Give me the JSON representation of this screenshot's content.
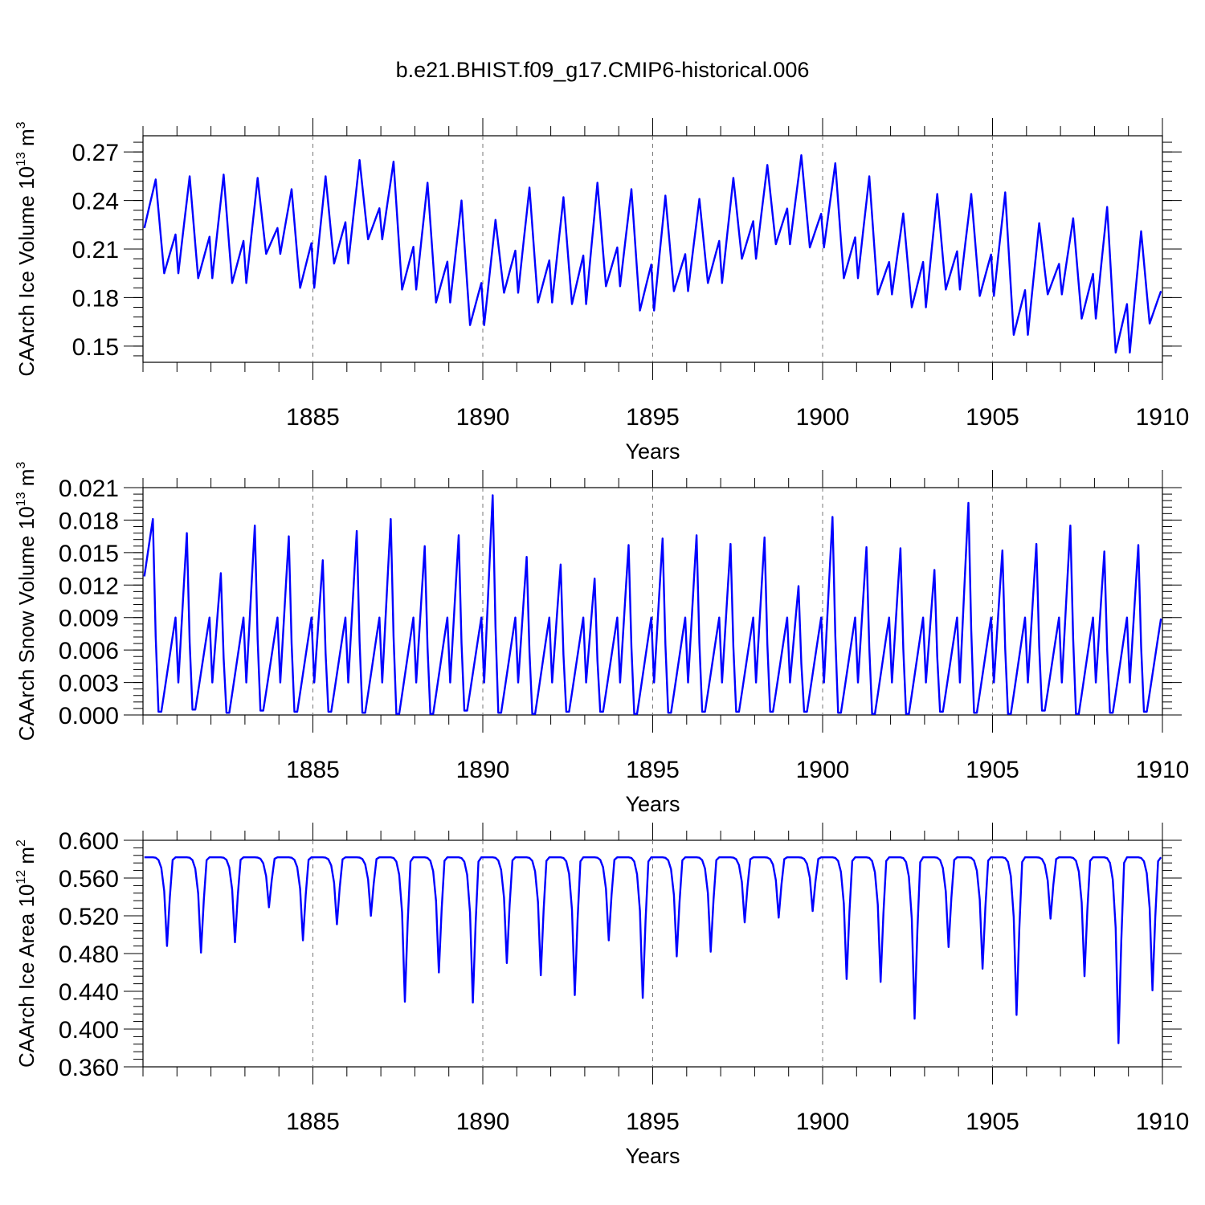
{
  "chart_data": [
    {
      "type": "line",
      "title": "b.e21.BHIST.f09_g17.CMIP6-historical.006",
      "xlabel": "Years",
      "ylabel": "CAArch Ice Volume 10",
      "ylabel_exp": "13",
      "ylabel_unit": " m",
      "ylabel_unit_exp": "3",
      "xlim": [
        1880,
        1910
      ],
      "ylim": [
        0.14,
        0.28
      ],
      "xticks": [
        1885,
        1890,
        1895,
        1900,
        1905,
        1910
      ],
      "xtick_labels": [
        "1885",
        "1890",
        "1895",
        "1900",
        "1905",
        "1910"
      ],
      "yticks": [
        0.15,
        0.18,
        0.21,
        0.24,
        0.27
      ],
      "ytick_labels": [
        "0.15",
        "0.18",
        "0.21",
        "0.24",
        "0.27"
      ],
      "grid": "vertical dashed at major x ticks",
      "series": [
        {
          "name": "CAArch Ice Volume",
          "color": "#0000ff",
          "peak_values": [
            0.253,
            0.255,
            0.256,
            0.254,
            0.247,
            0.255,
            0.265,
            0.264,
            0.251,
            0.24,
            0.228,
            0.248,
            0.242,
            0.251,
            0.247,
            0.243,
            0.241,
            0.254,
            0.262,
            0.268,
            0.263,
            0.255,
            0.232,
            0.244,
            0.244,
            0.245,
            0.226,
            0.229,
            0.236,
            0.221
          ],
          "trough_values": [
            0.195,
            0.192,
            0.189,
            0.207,
            0.186,
            0.201,
            0.216,
            0.185,
            0.177,
            0.163,
            0.183,
            0.177,
            0.176,
            0.187,
            0.172,
            0.184,
            0.189,
            0.204,
            0.213,
            0.211,
            0.192,
            0.182,
            0.174,
            0.185,
            0.181,
            0.157,
            0.182,
            0.167,
            0.146,
            0.164
          ],
          "start_value": 0.223,
          "end_value": 0.184
        }
      ]
    },
    {
      "type": "line",
      "xlabel": "Years",
      "ylabel": "CAArch Snow Volume 10",
      "ylabel_exp": "13",
      "ylabel_unit": " m",
      "ylabel_unit_exp": "3",
      "xlim": [
        1880,
        1910
      ],
      "ylim": [
        0.0,
        0.021
      ],
      "xticks": [
        1885,
        1890,
        1895,
        1900,
        1905,
        1910
      ],
      "xtick_labels": [
        "1885",
        "1890",
        "1895",
        "1900",
        "1905",
        "1910"
      ],
      "yticks": [
        0.0,
        0.003,
        0.006,
        0.009,
        0.012,
        0.015,
        0.018,
        0.021
      ],
      "ytick_labels": [
        "0.000",
        "0.003",
        "0.006",
        "0.009",
        "0.012",
        "0.015",
        "0.018",
        "0.021"
      ],
      "grid": "vertical dashed at major x ticks",
      "series": [
        {
          "name": "CAArch Snow Volume",
          "color": "#0000ff",
          "peak_values": [
            0.0181,
            0.0168,
            0.0131,
            0.0175,
            0.0165,
            0.0143,
            0.017,
            0.0181,
            0.0156,
            0.0166,
            0.0203,
            0.0146,
            0.0139,
            0.0126,
            0.0157,
            0.0163,
            0.0166,
            0.0158,
            0.0164,
            0.0119,
            0.0183,
            0.0155,
            0.0154,
            0.0134,
            0.0196,
            0.0152,
            0.0158,
            0.0175,
            0.0151,
            0.0157
          ],
          "trough_values": [
            0.0003,
            0.0005,
            0.0002,
            0.0004,
            0.0003,
            0.0003,
            0.0002,
            0.0001,
            0.0001,
            0.0004,
            0.0002,
            0.0001,
            0.0003,
            0.0003,
            0.0001,
            0.0002,
            0.0003,
            0.0003,
            0.0003,
            0.0003,
            0.0002,
            0.0001,
            0.0001,
            0.0003,
            0.0002,
            0.0001,
            0.0004,
            0.0001,
            0.0002,
            0.0003
          ],
          "start_value": 0.0128,
          "end_value": 0.0089
        }
      ]
    },
    {
      "type": "line",
      "xlabel": "Years",
      "ylabel": "CAArch Ice Area 10",
      "ylabel_exp": "12",
      "ylabel_unit": " m",
      "ylabel_unit_exp": "2",
      "xlim": [
        1880,
        1910
      ],
      "ylim": [
        0.36,
        0.6
      ],
      "xticks": [
        1885,
        1890,
        1895,
        1900,
        1905,
        1910
      ],
      "xtick_labels": [
        "1885",
        "1890",
        "1895",
        "1900",
        "1905",
        "1910"
      ],
      "yticks": [
        0.36,
        0.4,
        0.44,
        0.48,
        0.52,
        0.56,
        0.6
      ],
      "ytick_labels": [
        "0.360",
        "0.400",
        "0.440",
        "0.480",
        "0.520",
        "0.560",
        "0.600"
      ],
      "grid": "vertical dashed at major x ticks",
      "series": [
        {
          "name": "CAArch Ice Area",
          "color": "#0000ff",
          "plateau_value": 0.582,
          "trough_values": [
            0.488,
            0.481,
            0.492,
            0.529,
            0.494,
            0.511,
            0.52,
            0.429,
            0.46,
            0.428,
            0.47,
            0.457,
            0.436,
            0.494,
            0.433,
            0.477,
            0.482,
            0.513,
            0.518,
            0.525,
            0.453,
            0.45,
            0.411,
            0.487,
            0.464,
            0.415,
            0.517,
            0.456,
            0.385,
            0.441
          ]
        }
      ]
    }
  ]
}
